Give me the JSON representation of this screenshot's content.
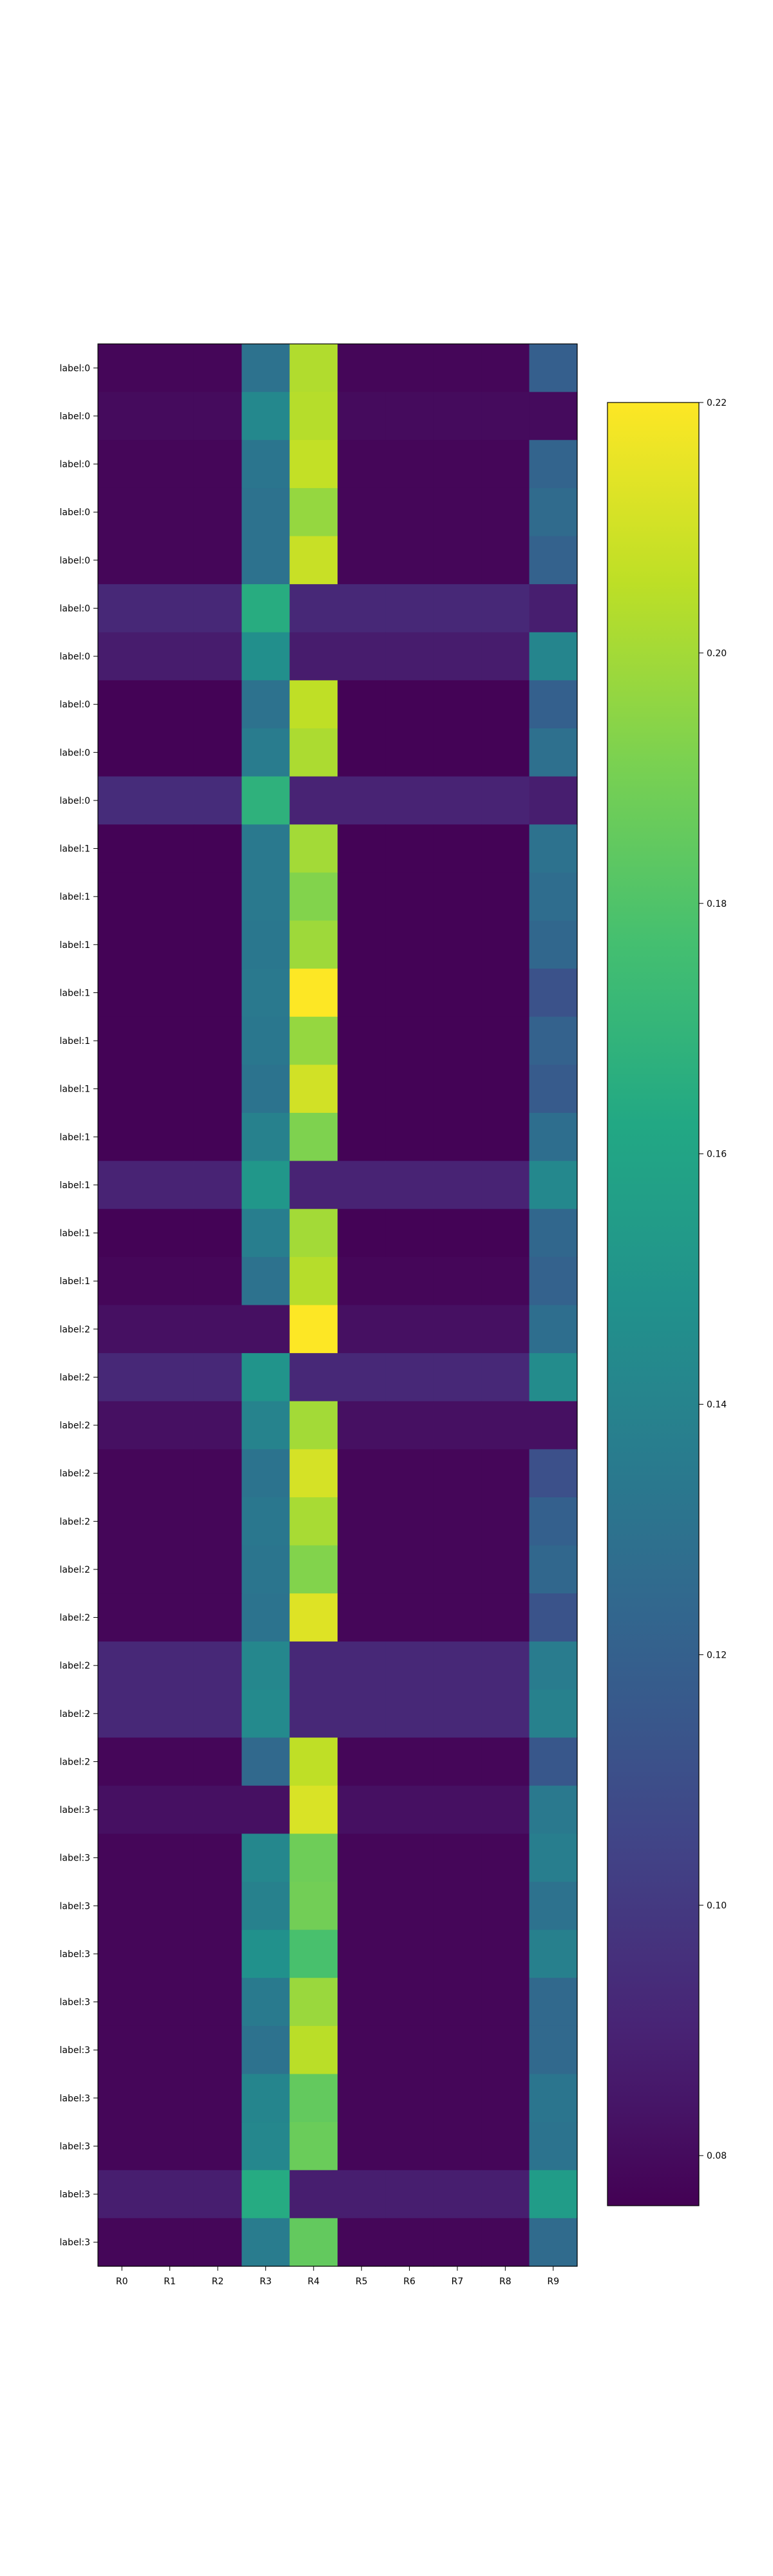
{
  "chart_data": {
    "type": "heatmap",
    "title": "",
    "xlabel": "",
    "ylabel": "",
    "columns": [
      "R0",
      "R1",
      "R2",
      "R3",
      "R4",
      "R5",
      "R6",
      "R7",
      "R8",
      "R9"
    ],
    "rows": [
      "label:0",
      "label:0",
      "label:0",
      "label:0",
      "label:0",
      "label:0",
      "label:0",
      "label:0",
      "label:0",
      "label:0",
      "label:1",
      "label:1",
      "label:1",
      "label:1",
      "label:1",
      "label:1",
      "label:1",
      "label:1",
      "label:1",
      "label:1",
      "label:2",
      "label:2",
      "label:2",
      "label:2",
      "label:2",
      "label:2",
      "label:2",
      "label:2",
      "label:2",
      "label:2",
      "label:3",
      "label:3",
      "label:3",
      "label:3",
      "label:3",
      "label:3",
      "label:3",
      "label:3",
      "label:3",
      "label:3"
    ],
    "values": [
      [
        0.078,
        0.078,
        0.078,
        0.13,
        0.203,
        0.078,
        0.078,
        0.078,
        0.078,
        0.119
      ],
      [
        0.08,
        0.08,
        0.08,
        0.143,
        0.204,
        0.08,
        0.08,
        0.08,
        0.08,
        0.08
      ],
      [
        0.078,
        0.078,
        0.078,
        0.132,
        0.207,
        0.078,
        0.078,
        0.078,
        0.078,
        0.122
      ],
      [
        0.078,
        0.078,
        0.078,
        0.13,
        0.197,
        0.078,
        0.078,
        0.078,
        0.078,
        0.126
      ],
      [
        0.078,
        0.078,
        0.078,
        0.13,
        0.208,
        0.078,
        0.078,
        0.078,
        0.078,
        0.121
      ],
      [
        0.092,
        0.092,
        0.092,
        0.165,
        0.092,
        0.092,
        0.092,
        0.092,
        0.092,
        0.088
      ],
      [
        0.087,
        0.087,
        0.087,
        0.147,
        0.087,
        0.087,
        0.087,
        0.087,
        0.087,
        0.141
      ],
      [
        0.077,
        0.077,
        0.077,
        0.13,
        0.206,
        0.077,
        0.077,
        0.077,
        0.077,
        0.12
      ],
      [
        0.077,
        0.077,
        0.077,
        0.136,
        0.202,
        0.077,
        0.077,
        0.077,
        0.077,
        0.129
      ],
      [
        0.094,
        0.094,
        0.094,
        0.168,
        0.09,
        0.09,
        0.09,
        0.09,
        0.09,
        0.088
      ],
      [
        0.077,
        0.077,
        0.077,
        0.134,
        0.2,
        0.077,
        0.077,
        0.077,
        0.077,
        0.13
      ],
      [
        0.077,
        0.077,
        0.077,
        0.134,
        0.193,
        0.077,
        0.077,
        0.077,
        0.077,
        0.127
      ],
      [
        0.077,
        0.077,
        0.077,
        0.133,
        0.199,
        0.077,
        0.077,
        0.077,
        0.077,
        0.124
      ],
      [
        0.077,
        0.077,
        0.077,
        0.134,
        0.22,
        0.077,
        0.077,
        0.077,
        0.077,
        0.112
      ],
      [
        0.077,
        0.077,
        0.077,
        0.133,
        0.197,
        0.077,
        0.077,
        0.077,
        0.077,
        0.121
      ],
      [
        0.077,
        0.077,
        0.077,
        0.131,
        0.21,
        0.077,
        0.077,
        0.077,
        0.077,
        0.117
      ],
      [
        0.077,
        0.077,
        0.077,
        0.139,
        0.192,
        0.077,
        0.077,
        0.077,
        0.077,
        0.128
      ],
      [
        0.09,
        0.09,
        0.09,
        0.152,
        0.09,
        0.09,
        0.09,
        0.09,
        0.09,
        0.143
      ],
      [
        0.077,
        0.077,
        0.077,
        0.137,
        0.2,
        0.077,
        0.077,
        0.077,
        0.077,
        0.124
      ],
      [
        0.078,
        0.078,
        0.078,
        0.13,
        0.204,
        0.078,
        0.078,
        0.078,
        0.078,
        0.121
      ],
      [
        0.082,
        0.082,
        0.082,
        0.082,
        0.221,
        0.082,
        0.082,
        0.082,
        0.082,
        0.128
      ],
      [
        0.092,
        0.092,
        0.092,
        0.15,
        0.092,
        0.092,
        0.092,
        0.092,
        0.092,
        0.145
      ],
      [
        0.082,
        0.082,
        0.082,
        0.14,
        0.2,
        0.082,
        0.082,
        0.082,
        0.082,
        0.082
      ],
      [
        0.078,
        0.078,
        0.078,
        0.131,
        0.211,
        0.078,
        0.078,
        0.078,
        0.078,
        0.111
      ],
      [
        0.078,
        0.078,
        0.078,
        0.133,
        0.201,
        0.078,
        0.078,
        0.078,
        0.078,
        0.12
      ],
      [
        0.078,
        0.078,
        0.078,
        0.132,
        0.193,
        0.078,
        0.078,
        0.078,
        0.078,
        0.124
      ],
      [
        0.078,
        0.078,
        0.078,
        0.131,
        0.213,
        0.078,
        0.078,
        0.078,
        0.078,
        0.113
      ],
      [
        0.092,
        0.092,
        0.092,
        0.142,
        0.092,
        0.092,
        0.092,
        0.092,
        0.092,
        0.136
      ],
      [
        0.092,
        0.092,
        0.092,
        0.144,
        0.092,
        0.092,
        0.092,
        0.092,
        0.092,
        0.139
      ],
      [
        0.078,
        0.078,
        0.078,
        0.125,
        0.206,
        0.078,
        0.078,
        0.078,
        0.078,
        0.115
      ],
      [
        0.082,
        0.082,
        0.082,
        0.082,
        0.212,
        0.082,
        0.082,
        0.082,
        0.082,
        0.134
      ],
      [
        0.078,
        0.078,
        0.078,
        0.142,
        0.188,
        0.078,
        0.078,
        0.078,
        0.078,
        0.137
      ],
      [
        0.078,
        0.078,
        0.078,
        0.139,
        0.189,
        0.078,
        0.078,
        0.078,
        0.078,
        0.13
      ],
      [
        0.078,
        0.078,
        0.078,
        0.148,
        0.178,
        0.078,
        0.078,
        0.078,
        0.078,
        0.138
      ],
      [
        0.078,
        0.078,
        0.078,
        0.135,
        0.198,
        0.078,
        0.078,
        0.078,
        0.078,
        0.125
      ],
      [
        0.078,
        0.078,
        0.078,
        0.13,
        0.205,
        0.078,
        0.078,
        0.078,
        0.078,
        0.125
      ],
      [
        0.078,
        0.078,
        0.078,
        0.141,
        0.185,
        0.078,
        0.078,
        0.078,
        0.078,
        0.132
      ],
      [
        0.078,
        0.078,
        0.078,
        0.142,
        0.187,
        0.078,
        0.078,
        0.078,
        0.078,
        0.131
      ],
      [
        0.088,
        0.088,
        0.088,
        0.164,
        0.088,
        0.088,
        0.088,
        0.088,
        0.088,
        0.155
      ],
      [
        0.078,
        0.078,
        0.078,
        0.136,
        0.185,
        0.078,
        0.078,
        0.078,
        0.078,
        0.126
      ]
    ],
    "colormap": "viridis",
    "colorbar": {
      "range": [
        0.076,
        0.22
      ],
      "ticks": [
        0.08,
        0.1,
        0.12,
        0.14,
        0.16,
        0.18,
        0.2,
        0.22
      ],
      "tick_labels": [
        "0.08",
        "0.10",
        "0.12",
        "0.14",
        "0.16",
        "0.18",
        "0.20",
        "0.22"
      ]
    },
    "grid": false,
    "legend": "none"
  }
}
